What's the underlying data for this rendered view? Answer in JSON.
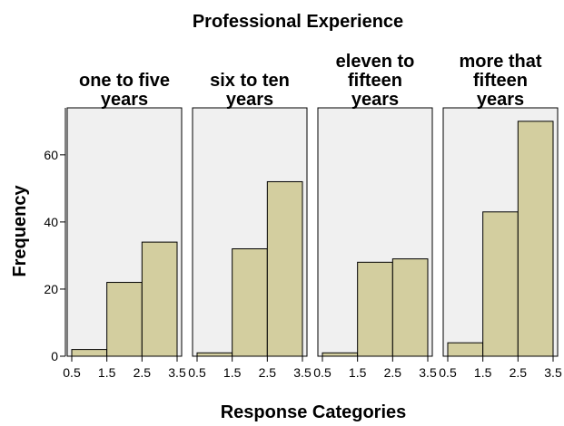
{
  "chart_data": {
    "type": "bar",
    "title": "Professional Experience",
    "xlabel": "Response Categories",
    "ylabel": "Frequency",
    "bin_edges": [
      0.5,
      1.5,
      2.5,
      3.5
    ],
    "x_ticks": [
      "0.5",
      "1.5",
      "2.5",
      "3.5"
    ],
    "ylim": [
      0,
      74
    ],
    "y_ticks": [
      0,
      20,
      40,
      60
    ],
    "grid": false,
    "panels": [
      {
        "title": [
          "one to five",
          "years"
        ],
        "values": [
          2,
          22,
          34
        ]
      },
      {
        "title": [
          "six to ten",
          "years"
        ],
        "values": [
          1,
          32,
          52
        ]
      },
      {
        "title": [
          "eleven to",
          "fifteen",
          "years"
        ],
        "values": [
          1,
          28,
          29
        ]
      },
      {
        "title": [
          "more that",
          "fifteen",
          "years"
        ],
        "values": [
          4,
          43,
          70
        ]
      }
    ],
    "colors": {
      "bar_fill": "#d3ce9f",
      "bar_stroke": "#000000",
      "panel_bg": "#f0f0f0",
      "panel_border": "#000000"
    }
  }
}
